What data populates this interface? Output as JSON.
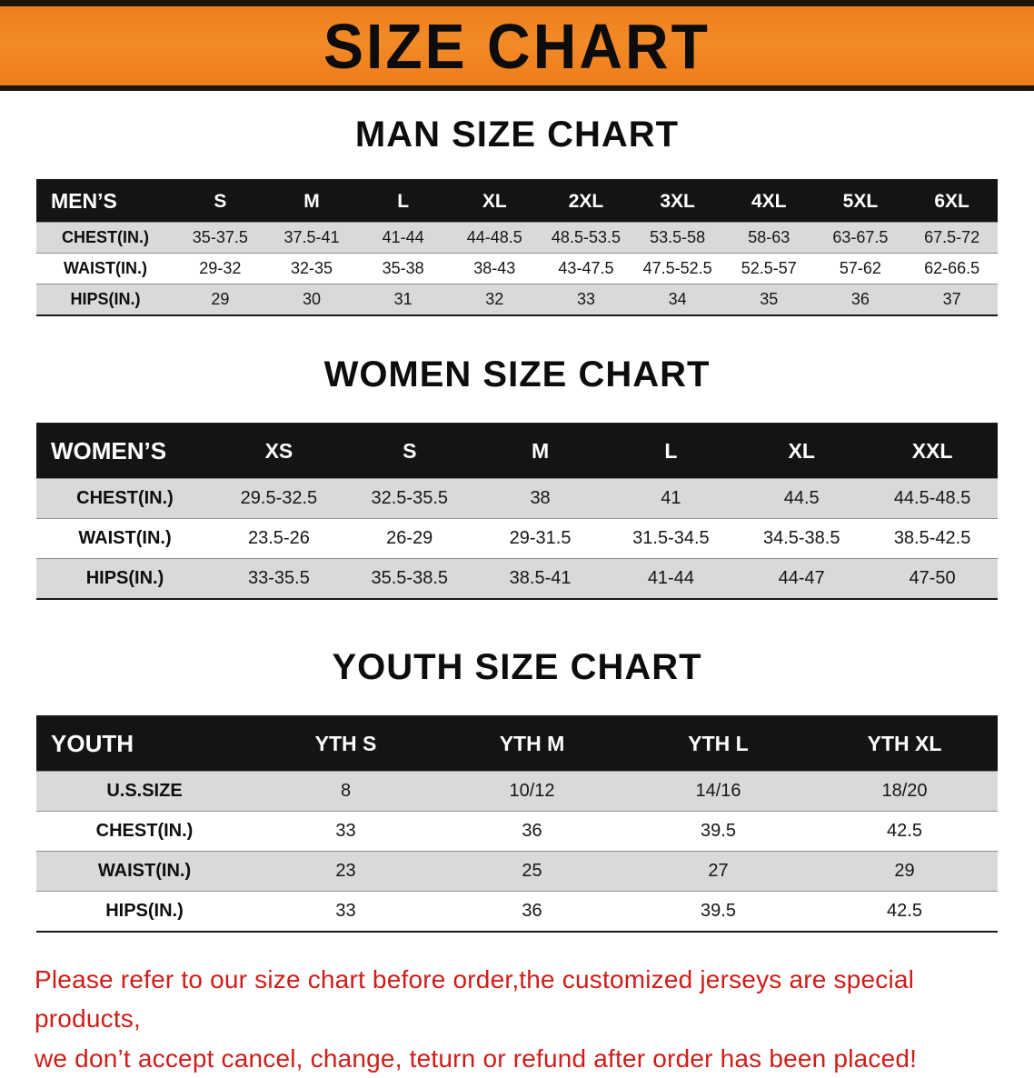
{
  "banner": {
    "title": "SIZE CHART",
    "bg_color": "#ef7f1d",
    "border_color": "#1e1309"
  },
  "colors": {
    "table_header_bg": "#141414",
    "row_alt_gray": "#d9d9d9",
    "note_red": "#cf1d18"
  },
  "sections": [
    {
      "heading": "MAN SIZE CHART",
      "table": {
        "header": [
          "MEN’S",
          "S",
          "M",
          "L",
          "XL",
          "2XL",
          "3XL",
          "4XL",
          "5XL",
          "6XL"
        ],
        "rows": [
          [
            "CHEST(IN.)",
            "35-37.5",
            "37.5-41",
            "41-44",
            "44-48.5",
            "48.5-53.5",
            "53.5-58",
            "58-63",
            "63-67.5",
            "67.5-72"
          ],
          [
            "WAIST(IN.)",
            "29-32",
            "32-35",
            "35-38",
            "38-43",
            "43-47.5",
            "47.5-52.5",
            "52.5-57",
            "57-62",
            "62-66.5"
          ],
          [
            "HIPS(IN.)",
            "29",
            "30",
            "31",
            "32",
            "33",
            "34",
            "35",
            "36",
            "37"
          ]
        ]
      }
    },
    {
      "heading": "WOMEN SIZE CHART",
      "table": {
        "header": [
          "WOMEN’S",
          "XS",
          "S",
          "M",
          "L",
          "XL",
          "XXL"
        ],
        "rows": [
          [
            "CHEST(IN.)",
            "29.5-32.5",
            "32.5-35.5",
            "38",
            "41",
            "44.5",
            "44.5-48.5"
          ],
          [
            "WAIST(IN.)",
            "23.5-26",
            "26-29",
            "29-31.5",
            "31.5-34.5",
            "34.5-38.5",
            "38.5-42.5"
          ],
          [
            "HIPS(IN.)",
            "33-35.5",
            "35.5-38.5",
            "38.5-41",
            "41-44",
            "44-47",
            "47-50"
          ]
        ]
      }
    },
    {
      "heading": "YOUTH SIZE CHART",
      "table": {
        "header": [
          "YOUTH",
          "YTH S",
          "YTH M",
          "YTH L",
          "YTH XL"
        ],
        "rows": [
          [
            "U.S.SIZE",
            "8",
            "10/12",
            "14/16",
            "18/20"
          ],
          [
            "CHEST(IN.)",
            "33",
            "36",
            "39.5",
            "42.5"
          ],
          [
            "WAIST(IN.)",
            "23",
            "25",
            "27",
            "29"
          ],
          [
            "HIPS(IN.)",
            "33",
            "36",
            "39.5",
            "42.5"
          ]
        ]
      }
    }
  ],
  "note": {
    "line1": "Please refer to our size chart before order,the customized jerseys are special products,",
    "line2": "we don’t accept cancel, change, teturn or refund after order has been placed!"
  }
}
